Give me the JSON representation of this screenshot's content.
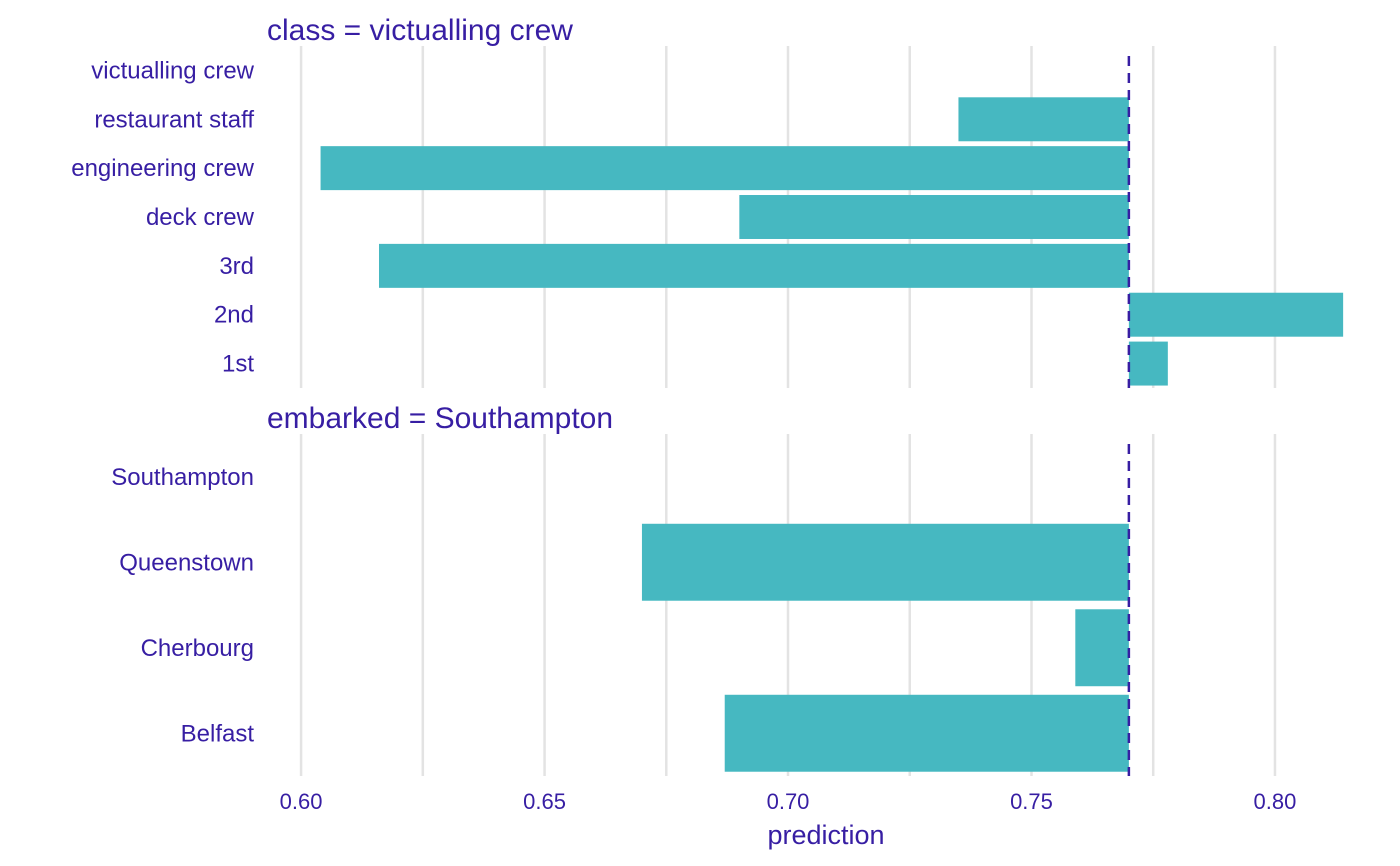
{
  "colors": {
    "bar": "#46B8C1",
    "text": "#371EA3",
    "grid": "#E3E3E3",
    "baseline": "#371EA3"
  },
  "chart_data": {
    "type": "bar",
    "orientation": "horizontal",
    "baseline": 0.77,
    "xlabel": "prediction",
    "xlim": [
      0.593,
      0.815
    ],
    "x_ticks": [
      0.6,
      0.65,
      0.7,
      0.75,
      0.8
    ],
    "x_tick_labels": [
      "0.60",
      "0.65",
      "0.70",
      "0.75",
      "0.80"
    ],
    "grid": true,
    "panels": [
      {
        "title": "class = victualling crew",
        "categories": [
          "victualling crew",
          "restaurant staff",
          "engineering crew",
          "deck crew",
          "3rd",
          "2nd",
          "1st"
        ],
        "values": [
          0.77,
          0.735,
          0.604,
          0.69,
          0.616,
          0.814,
          0.778
        ]
      },
      {
        "title": "embarked = Southampton",
        "categories": [
          "Southampton",
          "Queenstown",
          "Cherbourg",
          "Belfast"
        ],
        "values": [
          0.77,
          0.67,
          0.759,
          0.687
        ]
      }
    ]
  }
}
